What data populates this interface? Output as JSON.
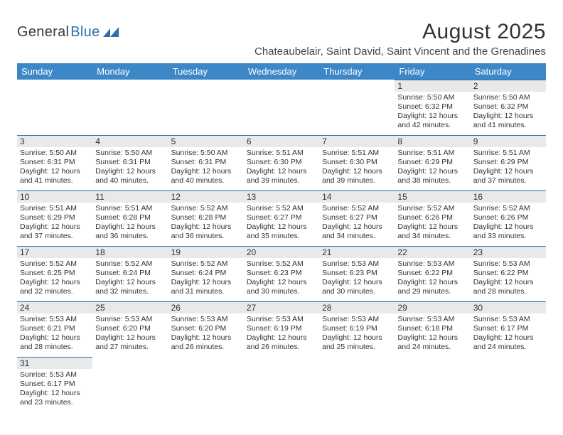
{
  "logo": {
    "general": "General",
    "blue": "Blue"
  },
  "title": "August 2025",
  "subtitle": "Chateaubelair, Saint David, Saint Vincent and the Grenadines",
  "colors": {
    "header_bg": "#3b87c8",
    "header_text": "#ffffff",
    "daynum_bg": "#e9e9e9",
    "daynum_border": "#2f6fae",
    "body_text": "#333333",
    "logo_blue": "#2f6fae"
  },
  "typography": {
    "title_fontsize": 30,
    "subtitle_fontsize": 15,
    "header_fontsize": 13,
    "daynum_fontsize": 12,
    "cell_fontsize": 10.5
  },
  "weekdays": [
    "Sunday",
    "Monday",
    "Tuesday",
    "Wednesday",
    "Thursday",
    "Friday",
    "Saturday"
  ],
  "weeks": [
    [
      null,
      null,
      null,
      null,
      null,
      {
        "n": "1",
        "sr": "Sunrise: 5:50 AM",
        "ss": "Sunset: 6:32 PM",
        "d1": "Daylight: 12 hours",
        "d2": "and 42 minutes."
      },
      {
        "n": "2",
        "sr": "Sunrise: 5:50 AM",
        "ss": "Sunset: 6:32 PM",
        "d1": "Daylight: 12 hours",
        "d2": "and 41 minutes."
      }
    ],
    [
      {
        "n": "3",
        "sr": "Sunrise: 5:50 AM",
        "ss": "Sunset: 6:31 PM",
        "d1": "Daylight: 12 hours",
        "d2": "and 41 minutes."
      },
      {
        "n": "4",
        "sr": "Sunrise: 5:50 AM",
        "ss": "Sunset: 6:31 PM",
        "d1": "Daylight: 12 hours",
        "d2": "and 40 minutes."
      },
      {
        "n": "5",
        "sr": "Sunrise: 5:50 AM",
        "ss": "Sunset: 6:31 PM",
        "d1": "Daylight: 12 hours",
        "d2": "and 40 minutes."
      },
      {
        "n": "6",
        "sr": "Sunrise: 5:51 AM",
        "ss": "Sunset: 6:30 PM",
        "d1": "Daylight: 12 hours",
        "d2": "and 39 minutes."
      },
      {
        "n": "7",
        "sr": "Sunrise: 5:51 AM",
        "ss": "Sunset: 6:30 PM",
        "d1": "Daylight: 12 hours",
        "d2": "and 39 minutes."
      },
      {
        "n": "8",
        "sr": "Sunrise: 5:51 AM",
        "ss": "Sunset: 6:29 PM",
        "d1": "Daylight: 12 hours",
        "d2": "and 38 minutes."
      },
      {
        "n": "9",
        "sr": "Sunrise: 5:51 AM",
        "ss": "Sunset: 6:29 PM",
        "d1": "Daylight: 12 hours",
        "d2": "and 37 minutes."
      }
    ],
    [
      {
        "n": "10",
        "sr": "Sunrise: 5:51 AM",
        "ss": "Sunset: 6:29 PM",
        "d1": "Daylight: 12 hours",
        "d2": "and 37 minutes."
      },
      {
        "n": "11",
        "sr": "Sunrise: 5:51 AM",
        "ss": "Sunset: 6:28 PM",
        "d1": "Daylight: 12 hours",
        "d2": "and 36 minutes."
      },
      {
        "n": "12",
        "sr": "Sunrise: 5:52 AM",
        "ss": "Sunset: 6:28 PM",
        "d1": "Daylight: 12 hours",
        "d2": "and 36 minutes."
      },
      {
        "n": "13",
        "sr": "Sunrise: 5:52 AM",
        "ss": "Sunset: 6:27 PM",
        "d1": "Daylight: 12 hours",
        "d2": "and 35 minutes."
      },
      {
        "n": "14",
        "sr": "Sunrise: 5:52 AM",
        "ss": "Sunset: 6:27 PM",
        "d1": "Daylight: 12 hours",
        "d2": "and 34 minutes."
      },
      {
        "n": "15",
        "sr": "Sunrise: 5:52 AM",
        "ss": "Sunset: 6:26 PM",
        "d1": "Daylight: 12 hours",
        "d2": "and 34 minutes."
      },
      {
        "n": "16",
        "sr": "Sunrise: 5:52 AM",
        "ss": "Sunset: 6:26 PM",
        "d1": "Daylight: 12 hours",
        "d2": "and 33 minutes."
      }
    ],
    [
      {
        "n": "17",
        "sr": "Sunrise: 5:52 AM",
        "ss": "Sunset: 6:25 PM",
        "d1": "Daylight: 12 hours",
        "d2": "and 32 minutes."
      },
      {
        "n": "18",
        "sr": "Sunrise: 5:52 AM",
        "ss": "Sunset: 6:24 PM",
        "d1": "Daylight: 12 hours",
        "d2": "and 32 minutes."
      },
      {
        "n": "19",
        "sr": "Sunrise: 5:52 AM",
        "ss": "Sunset: 6:24 PM",
        "d1": "Daylight: 12 hours",
        "d2": "and 31 minutes."
      },
      {
        "n": "20",
        "sr": "Sunrise: 5:52 AM",
        "ss": "Sunset: 6:23 PM",
        "d1": "Daylight: 12 hours",
        "d2": "and 30 minutes."
      },
      {
        "n": "21",
        "sr": "Sunrise: 5:53 AM",
        "ss": "Sunset: 6:23 PM",
        "d1": "Daylight: 12 hours",
        "d2": "and 30 minutes."
      },
      {
        "n": "22",
        "sr": "Sunrise: 5:53 AM",
        "ss": "Sunset: 6:22 PM",
        "d1": "Daylight: 12 hours",
        "d2": "and 29 minutes."
      },
      {
        "n": "23",
        "sr": "Sunrise: 5:53 AM",
        "ss": "Sunset: 6:22 PM",
        "d1": "Daylight: 12 hours",
        "d2": "and 28 minutes."
      }
    ],
    [
      {
        "n": "24",
        "sr": "Sunrise: 5:53 AM",
        "ss": "Sunset: 6:21 PM",
        "d1": "Daylight: 12 hours",
        "d2": "and 28 minutes."
      },
      {
        "n": "25",
        "sr": "Sunrise: 5:53 AM",
        "ss": "Sunset: 6:20 PM",
        "d1": "Daylight: 12 hours",
        "d2": "and 27 minutes."
      },
      {
        "n": "26",
        "sr": "Sunrise: 5:53 AM",
        "ss": "Sunset: 6:20 PM",
        "d1": "Daylight: 12 hours",
        "d2": "and 26 minutes."
      },
      {
        "n": "27",
        "sr": "Sunrise: 5:53 AM",
        "ss": "Sunset: 6:19 PM",
        "d1": "Daylight: 12 hours",
        "d2": "and 26 minutes."
      },
      {
        "n": "28",
        "sr": "Sunrise: 5:53 AM",
        "ss": "Sunset: 6:19 PM",
        "d1": "Daylight: 12 hours",
        "d2": "and 25 minutes."
      },
      {
        "n": "29",
        "sr": "Sunrise: 5:53 AM",
        "ss": "Sunset: 6:18 PM",
        "d1": "Daylight: 12 hours",
        "d2": "and 24 minutes."
      },
      {
        "n": "30",
        "sr": "Sunrise: 5:53 AM",
        "ss": "Sunset: 6:17 PM",
        "d1": "Daylight: 12 hours",
        "d2": "and 24 minutes."
      }
    ],
    [
      {
        "n": "31",
        "sr": "Sunrise: 5:53 AM",
        "ss": "Sunset: 6:17 PM",
        "d1": "Daylight: 12 hours",
        "d2": "and 23 minutes."
      },
      null,
      null,
      null,
      null,
      null,
      null
    ]
  ]
}
